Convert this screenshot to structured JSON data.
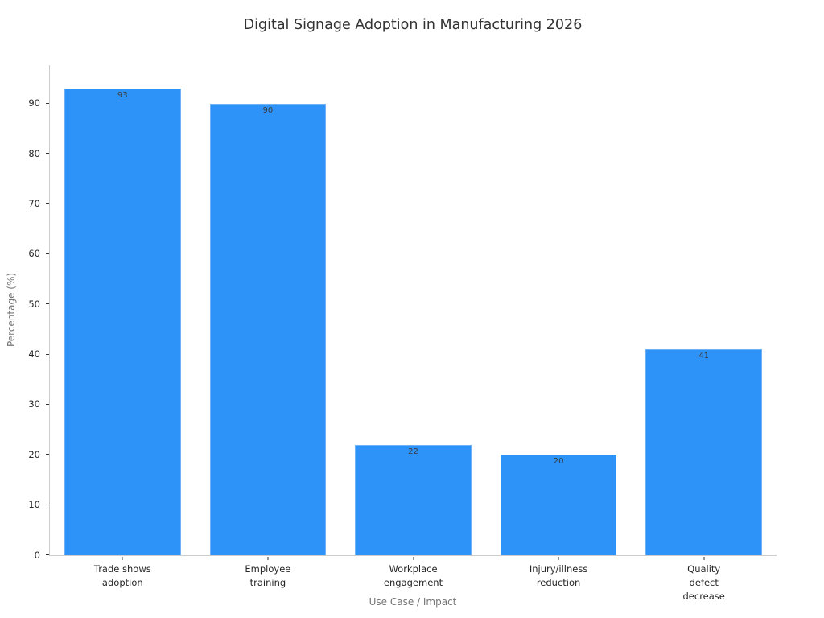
{
  "chart_data": {
    "type": "bar",
    "title": "Digital Signage Adoption in Manufacturing 2026",
    "xlabel": "Use Case / Impact",
    "ylabel": "Percentage (%)",
    "categories": [
      "Trade shows\nadoption",
      "Employee\ntraining",
      "Workplace\nengagement",
      "Injury/illness\nreduction",
      "Quality\ndefect decrease"
    ],
    "values": [
      93,
      90,
      22,
      20,
      41
    ],
    "value_labels": [
      "93",
      "90",
      "22",
      "20",
      "41"
    ],
    "yticks": [
      0,
      10,
      20,
      30,
      40,
      50,
      60,
      70,
      80,
      90
    ],
    "ylim": [
      0,
      97.65
    ],
    "grid": false,
    "legend": null,
    "colors": {
      "bar_fill": "#2e93f8",
      "bar_edge": "#6fb1f7",
      "title_text": "#333333",
      "tick_text": "#262626",
      "axis_label_text": "#757575",
      "spine": "#cccccc",
      "value_label_text": "#3a3a3a"
    }
  }
}
